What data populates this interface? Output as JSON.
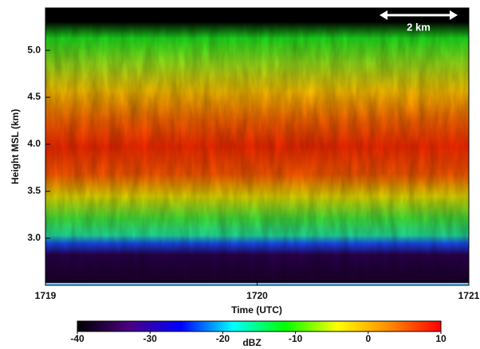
{
  "chart_data": {
    "type": "heatmap",
    "xlabel": "Time (UTC)",
    "ylabel": "Height MSL (km)",
    "xlim": [
      1719,
      1721
    ],
    "xticks": [
      1719,
      1720,
      1721
    ],
    "ylim": [
      2.5,
      5.45
    ],
    "yticks": [
      {
        "value": 3,
        "label": "3.0"
      },
      {
        "value": 3.5,
        "label": "3.5"
      },
      {
        "value": 4,
        "label": "4.0"
      },
      {
        "value": 4.5,
        "label": "4.5"
      },
      {
        "value": 5,
        "label": "5.0"
      }
    ],
    "annotation": "2 km",
    "colorbar": {
      "label": "dBZ",
      "lim": [
        -40,
        10
      ],
      "ticks": [
        -40,
        -30,
        -20,
        -10,
        0,
        10
      ],
      "colors": [
        "#000000",
        "#4b0082",
        "#0000ff",
        "#00ffff",
        "#00ff00",
        "#ffff00",
        "#ff8c00",
        "#ff0000"
      ]
    }
  }
}
